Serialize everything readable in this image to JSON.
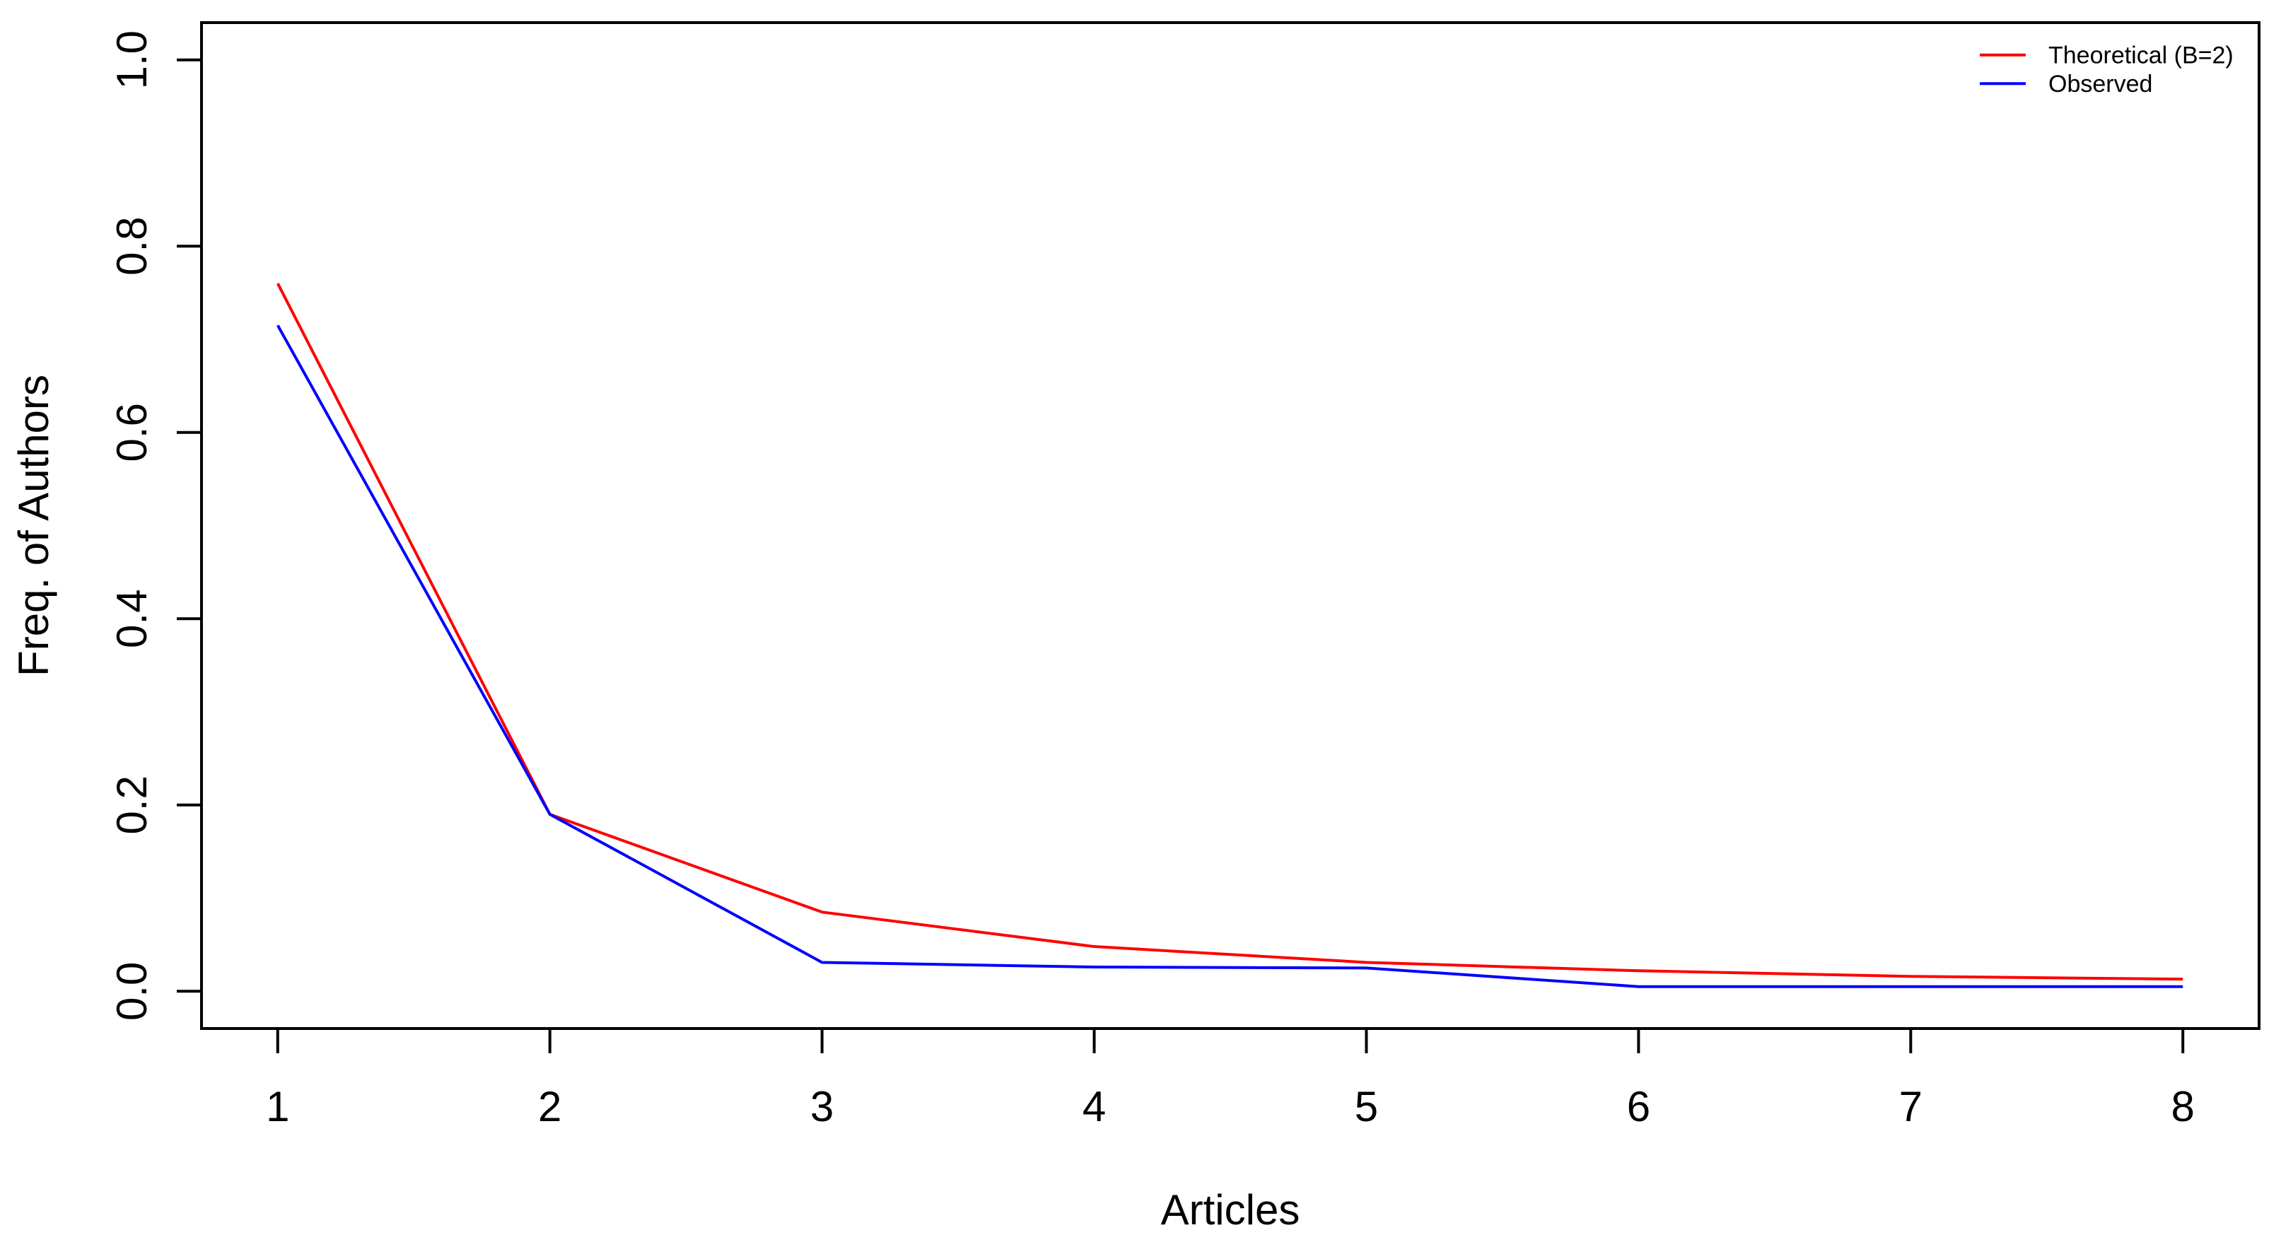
{
  "chart_data": {
    "type": "line",
    "title": "",
    "x": [
      1,
      2,
      3,
      4,
      5,
      6,
      7,
      8
    ],
    "series": [
      {
        "name": "Theoretical (B=2)",
        "color": "#ff0000",
        "values": [
          0.76,
          0.19,
          0.085,
          0.048,
          0.031,
          0.022,
          0.016,
          0.013
        ]
      },
      {
        "name": "Observed",
        "color": "#0000ff",
        "values": [
          0.715,
          0.19,
          0.031,
          0.026,
          0.025,
          0.005,
          0.005,
          0.005
        ]
      }
    ],
    "xlabel": "Articles",
    "ylabel": "Freq. of Authors",
    "xlim": [
      1,
      8
    ],
    "ylim": [
      0,
      1
    ],
    "xticks": [
      1,
      2,
      3,
      4,
      5,
      6,
      7,
      8
    ],
    "xtick_labels": [
      "1",
      "2",
      "3",
      "4",
      "5",
      "6",
      "7",
      "8"
    ],
    "yticks": [
      0,
      0.2,
      0.4,
      0.6,
      0.8,
      1
    ],
    "ytick_labels": [
      "0.0",
      "0.2",
      "0.4",
      "0.6",
      "0.8",
      "1.0"
    ],
    "grid": false,
    "axis_color": "#000000",
    "background": "#ffffff",
    "legend": {
      "position": "top-right",
      "box": false,
      "entries": [
        "Theoretical (B=2)",
        "Observed"
      ]
    }
  }
}
